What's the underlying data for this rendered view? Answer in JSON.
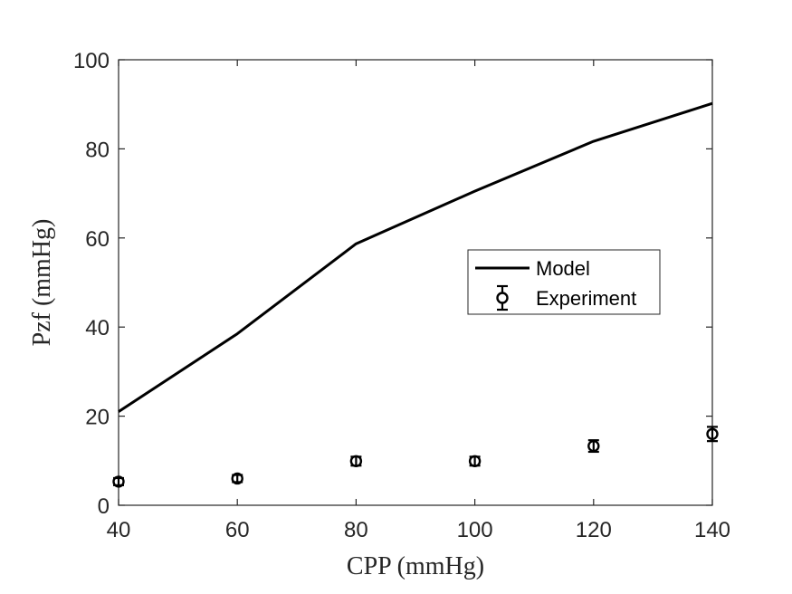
{
  "chart_data": {
    "type": "line",
    "xlabel": "CPP (mmHg)",
    "ylabel": "Pzf (mmHg)",
    "xlim": [
      40,
      140
    ],
    "ylim": [
      0,
      100
    ],
    "xticks": [
      40,
      60,
      80,
      100,
      120,
      140
    ],
    "yticks": [
      0,
      20,
      40,
      60,
      80,
      100
    ],
    "xtick_labels": [
      "40",
      "60",
      "80",
      "100",
      "120",
      "140"
    ],
    "ytick_labels": [
      "0",
      "20",
      "40",
      "60",
      "80",
      "100"
    ],
    "grid": false,
    "legend_position": "center-right",
    "series": [
      {
        "name": "Model",
        "style": "line",
        "color": "#000000",
        "x": [
          40,
          60,
          80,
          100,
          120,
          140
        ],
        "y": [
          21,
          38.5,
          58.7,
          70.5,
          81.7,
          90.2
        ]
      },
      {
        "name": "Experiment",
        "style": "errorbar-marker",
        "marker": "circle",
        "color": "#000000",
        "x": [
          40,
          60,
          80,
          100,
          120,
          140
        ],
        "y": [
          5.3,
          6,
          9.9,
          9.9,
          13.3,
          16
        ],
        "err": [
          0.8,
          0.8,
          1.0,
          1.0,
          1.3,
          1.6
        ]
      }
    ]
  }
}
